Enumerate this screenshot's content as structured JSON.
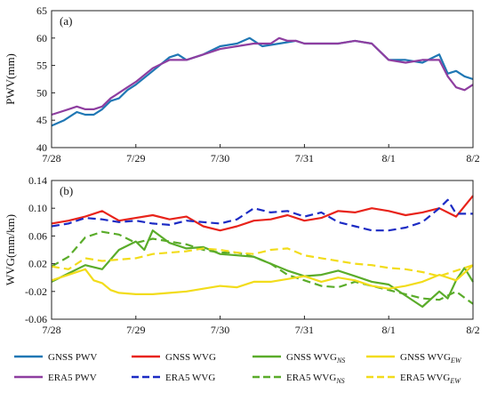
{
  "chart_data": [
    {
      "type": "line",
      "panel_label": "(a)",
      "ylabel": "PWV(mm)",
      "x_ticks": [
        "7/28",
        "7/29",
        "7/30",
        "7/31",
        "8/1",
        "8/2"
      ],
      "xlim": [
        0,
        5
      ],
      "ylim": [
        40,
        65
      ],
      "y_ticks": [
        "40",
        "45",
        "50",
        "55",
        "60",
        "65"
      ],
      "series": [
        {
          "name": "GNSS PWV",
          "color": "#1f77b4",
          "dash": "solid",
          "x": [
            0,
            0.15,
            0.3,
            0.4,
            0.5,
            0.6,
            0.7,
            0.8,
            0.9,
            1.0,
            1.2,
            1.4,
            1.5,
            1.6,
            1.8,
            2.0,
            2.2,
            2.35,
            2.5,
            2.7,
            2.9,
            3.0,
            3.2,
            3.4,
            3.6,
            3.8,
            4.0,
            4.2,
            4.4,
            4.6,
            4.7,
            4.8,
            4.9,
            5.0
          ],
          "values": [
            44,
            45,
            46.5,
            46,
            46,
            47,
            48.5,
            49,
            50.5,
            51.5,
            54,
            56.5,
            57,
            56,
            57,
            58.5,
            59,
            60,
            58.5,
            59,
            59.5,
            59,
            59,
            59,
            59.5,
            59,
            56,
            56,
            55.5,
            57,
            53.5,
            54,
            53,
            52.5
          ]
        },
        {
          "name": "ERA5 PWV",
          "color": "#8e3ea0",
          "dash": "solid",
          "x": [
            0,
            0.1,
            0.2,
            0.3,
            0.4,
            0.5,
            0.6,
            0.7,
            0.8,
            0.9,
            1.0,
            1.2,
            1.4,
            1.6,
            1.8,
            2.0,
            2.2,
            2.4,
            2.6,
            2.7,
            2.8,
            2.9,
            3.0,
            3.2,
            3.4,
            3.6,
            3.8,
            4.0,
            4.2,
            4.4,
            4.6,
            4.7,
            4.8,
            4.9,
            5.0
          ],
          "values": [
            46,
            46.5,
            47,
            47.5,
            47,
            47,
            47.5,
            49,
            50,
            51,
            52,
            54.5,
            56,
            56,
            57,
            58,
            58.5,
            59,
            59,
            60,
            59.5,
            59.5,
            59,
            59,
            59,
            59.5,
            59,
            56,
            55.5,
            56,
            56,
            53,
            51,
            50.5,
            51.5
          ]
        }
      ]
    },
    {
      "type": "line",
      "panel_label": "(b)",
      "ylabel": "WVG(mm/km)",
      "x_ticks": [
        "7/28",
        "7/29",
        "7/30",
        "7/31",
        "8/1",
        "8/2"
      ],
      "xlim": [
        0,
        5
      ],
      "ylim": [
        -0.06,
        0.14
      ],
      "y_ticks": [
        "-0.06",
        "-0.02",
        "0.02",
        "0.06",
        "0.10",
        "0.14"
      ],
      "series": [
        {
          "name": "GNSS WVG",
          "color": "#e8231a",
          "dash": "solid",
          "x": [
            0,
            0.2,
            0.4,
            0.6,
            0.8,
            1.0,
            1.2,
            1.4,
            1.6,
            1.8,
            2.0,
            2.2,
            2.4,
            2.6,
            2.8,
            3.0,
            3.2,
            3.4,
            3.6,
            3.8,
            4.0,
            4.2,
            4.4,
            4.6,
            4.8,
            5.0
          ],
          "values": [
            0.078,
            0.082,
            0.088,
            0.096,
            0.082,
            0.086,
            0.09,
            0.084,
            0.088,
            0.074,
            0.068,
            0.074,
            0.082,
            0.084,
            0.09,
            0.082,
            0.086,
            0.096,
            0.094,
            0.1,
            0.096,
            0.09,
            0.094,
            0.1,
            0.088,
            0.118
          ]
        },
        {
          "name": "ERA5 WVG",
          "color": "#1c2bc4",
          "dash": "long",
          "x": [
            0,
            0.2,
            0.4,
            0.6,
            0.8,
            1.0,
            1.2,
            1.4,
            1.6,
            1.8,
            2.0,
            2.2,
            2.4,
            2.6,
            2.8,
            3.0,
            3.2,
            3.4,
            3.6,
            3.8,
            4.0,
            4.2,
            4.4,
            4.6,
            4.7,
            4.8,
            5.0
          ],
          "values": [
            0.074,
            0.078,
            0.086,
            0.084,
            0.08,
            0.082,
            0.078,
            0.076,
            0.082,
            0.08,
            0.078,
            0.084,
            0.1,
            0.094,
            0.096,
            0.088,
            0.094,
            0.08,
            0.074,
            0.068,
            0.068,
            0.072,
            0.08,
            0.1,
            0.112,
            0.092,
            0.092
          ]
        },
        {
          "name": "GNSS WVG_NS",
          "color": "#5aac2a",
          "dash": "solid",
          "x": [
            0,
            0.2,
            0.4,
            0.6,
            0.8,
            1.0,
            1.1,
            1.2,
            1.4,
            1.6,
            1.8,
            2.0,
            2.2,
            2.4,
            2.6,
            2.8,
            3.0,
            3.2,
            3.4,
            3.6,
            3.8,
            4.0,
            4.2,
            4.4,
            4.6,
            4.7,
            4.8,
            4.9,
            5.0
          ],
          "values": [
            -0.006,
            0.006,
            0.018,
            0.012,
            0.04,
            0.052,
            0.04,
            0.068,
            0.05,
            0.042,
            0.044,
            0.034,
            0.032,
            0.03,
            0.02,
            0.01,
            0.002,
            0.004,
            0.01,
            0.002,
            -0.006,
            -0.01,
            -0.026,
            -0.042,
            -0.02,
            -0.03,
            -0.004,
            0.014,
            -0.006
          ]
        },
        {
          "name": "ERA5 WVG_NS",
          "color": "#5aac2a",
          "dash": "long",
          "x": [
            0,
            0.2,
            0.4,
            0.6,
            0.8,
            1.0,
            1.2,
            1.4,
            1.6,
            1.8,
            2.0,
            2.2,
            2.4,
            2.6,
            2.8,
            3.0,
            3.2,
            3.4,
            3.6,
            3.8,
            4.0,
            4.2,
            4.4,
            4.6,
            4.8,
            5.0
          ],
          "values": [
            0.016,
            0.03,
            0.058,
            0.066,
            0.062,
            0.05,
            0.056,
            0.052,
            0.048,
            0.04,
            0.036,
            0.036,
            0.03,
            0.02,
            0.004,
            -0.004,
            -0.012,
            -0.014,
            -0.006,
            -0.012,
            -0.018,
            -0.024,
            -0.03,
            -0.032,
            -0.02,
            -0.038
          ]
        },
        {
          "name": "GNSS WVG_EW",
          "color": "#f2dc1b",
          "dash": "solid",
          "x": [
            0,
            0.2,
            0.4,
            0.5,
            0.6,
            0.7,
            0.8,
            1.0,
            1.2,
            1.4,
            1.6,
            1.8,
            2.0,
            2.2,
            2.4,
            2.6,
            2.8,
            3.0,
            3.2,
            3.4,
            3.6,
            3.8,
            4.0,
            4.2,
            4.4,
            4.6,
            4.8,
            5.0
          ],
          "values": [
            -0.004,
            0.004,
            0.012,
            -0.004,
            -0.008,
            -0.018,
            -0.022,
            -0.024,
            -0.024,
            -0.022,
            -0.02,
            -0.016,
            -0.012,
            -0.014,
            -0.006,
            -0.006,
            -0.002,
            0.002,
            -0.006,
            0.0,
            -0.004,
            -0.012,
            -0.016,
            -0.012,
            -0.006,
            0.004,
            -0.004,
            0.018
          ]
        },
        {
          "name": "ERA5 WVG_EW",
          "color": "#f2dc1b",
          "dash": "long",
          "x": [
            0,
            0.2,
            0.4,
            0.6,
            0.8,
            1.0,
            1.2,
            1.4,
            1.6,
            1.8,
            2.0,
            2.2,
            2.4,
            2.6,
            2.8,
            3.0,
            3.2,
            3.4,
            3.6,
            3.8,
            4.0,
            4.2,
            4.4,
            4.6,
            4.8,
            5.0
          ],
          "values": [
            0.016,
            0.012,
            0.028,
            0.024,
            0.026,
            0.028,
            0.034,
            0.036,
            0.038,
            0.042,
            0.04,
            0.036,
            0.034,
            0.04,
            0.042,
            0.032,
            0.028,
            0.024,
            0.02,
            0.018,
            0.014,
            0.012,
            0.008,
            0.002,
            0.01,
            0.018
          ]
        }
      ]
    }
  ],
  "legend": [
    {
      "label": "GNSS PWV",
      "color": "#1f77b4",
      "dash": "solid"
    },
    {
      "label": "GNSS WVG",
      "color": "#e8231a",
      "dash": "solid"
    },
    {
      "label": "GNSS WVG",
      "sub": "NS",
      "color": "#5aac2a",
      "dash": "solid"
    },
    {
      "label": "GNSS WVG",
      "sub": "EW",
      "color": "#f2dc1b",
      "dash": "solid"
    },
    {
      "label": "ERA5 PWV",
      "color": "#8e3ea0",
      "dash": "solid"
    },
    {
      "label": "ERA5 WVG",
      "color": "#1c2bc4",
      "dash": "long"
    },
    {
      "label": "ERA5 WVG",
      "sub": "NS",
      "color": "#5aac2a",
      "dash": "long"
    },
    {
      "label": "ERA5 WVG",
      "sub": "EW",
      "color": "#f2dc1b",
      "dash": "long"
    }
  ]
}
